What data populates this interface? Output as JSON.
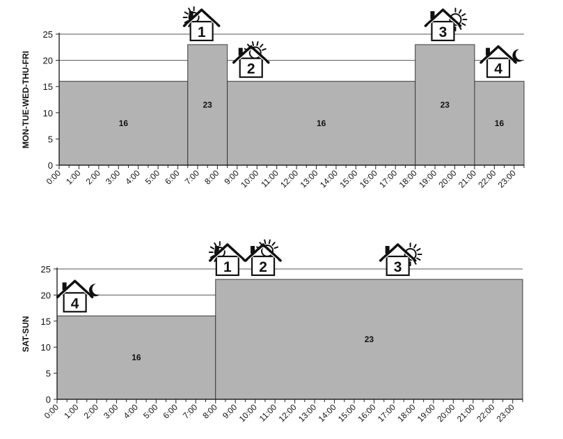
{
  "chart_data": [
    {
      "type": "bar",
      "ylabel": "MON-TUE-WED-THU-FRI",
      "ylim": [
        0,
        25
      ],
      "yticks": [
        0,
        5,
        10,
        15,
        20,
        25
      ],
      "grid": true,
      "xticks": [
        "0:00",
        "1:00",
        "2:00",
        "3:00",
        "4:00",
        "5:00",
        "6:00",
        "7:00",
        "8:00",
        "9:00",
        "10:00",
        "11:00",
        "12:00",
        "13:00",
        "14:00",
        "15:00",
        "16:00",
        "17:00",
        "18:00",
        "19:00",
        "20:00",
        "21:00",
        "22:00",
        "23:00"
      ],
      "segments": [
        {
          "start": 0,
          "end": 6.5,
          "value": 16,
          "label": "16"
        },
        {
          "start": 6.5,
          "end": 8.5,
          "value": 23,
          "label": "23"
        },
        {
          "start": 8.5,
          "end": 18,
          "value": 16,
          "label": "16"
        },
        {
          "start": 18,
          "end": 21,
          "value": 23,
          "label": "23"
        },
        {
          "start": 21,
          "end": 23.5,
          "value": 16,
          "label": "16"
        }
      ],
      "mode_markers": [
        {
          "number": "1",
          "icon": "house-sunrise-icon",
          "at": 7.2,
          "level": 23
        },
        {
          "number": "2",
          "icon": "house-sun-icon",
          "at": 9.7,
          "level": 16
        },
        {
          "number": "3",
          "icon": "house-sunset-icon",
          "at": 19.4,
          "level": 23
        },
        {
          "number": "4",
          "icon": "house-moon-icon",
          "at": 22.2,
          "level": 16
        }
      ]
    },
    {
      "type": "bar",
      "ylabel": "SAT-SUN",
      "ylim": [
        0,
        25
      ],
      "yticks": [
        0,
        5,
        10,
        15,
        20,
        25
      ],
      "grid": true,
      "xticks": [
        "0:00",
        "1:00",
        "2:00",
        "3:00",
        "4:00",
        "5:00",
        "6:00",
        "7:00",
        "8:00",
        "9:00",
        "10:00",
        "11:00",
        "12:00",
        "13:00",
        "14:00",
        "15:00",
        "16:00",
        "17:00",
        "18:00",
        "19:00",
        "20:00",
        "21:00",
        "22:00",
        "23:00"
      ],
      "segments": [
        {
          "start": 0,
          "end": 8,
          "value": 16,
          "label": "16"
        },
        {
          "start": 8,
          "end": 23.5,
          "value": 23,
          "label": "23"
        }
      ],
      "mode_markers": [
        {
          "number": "4",
          "icon": "house-moon-icon",
          "at": 0.9,
          "level": 16
        },
        {
          "number": "1",
          "icon": "house-sunrise-icon",
          "at": 8.6,
          "level": 23
        },
        {
          "number": "2",
          "icon": "house-sun-icon",
          "at": 10.4,
          "level": 23
        },
        {
          "number": "3",
          "icon": "house-sunset-icon",
          "at": 17.2,
          "level": 23
        }
      ]
    }
  ]
}
